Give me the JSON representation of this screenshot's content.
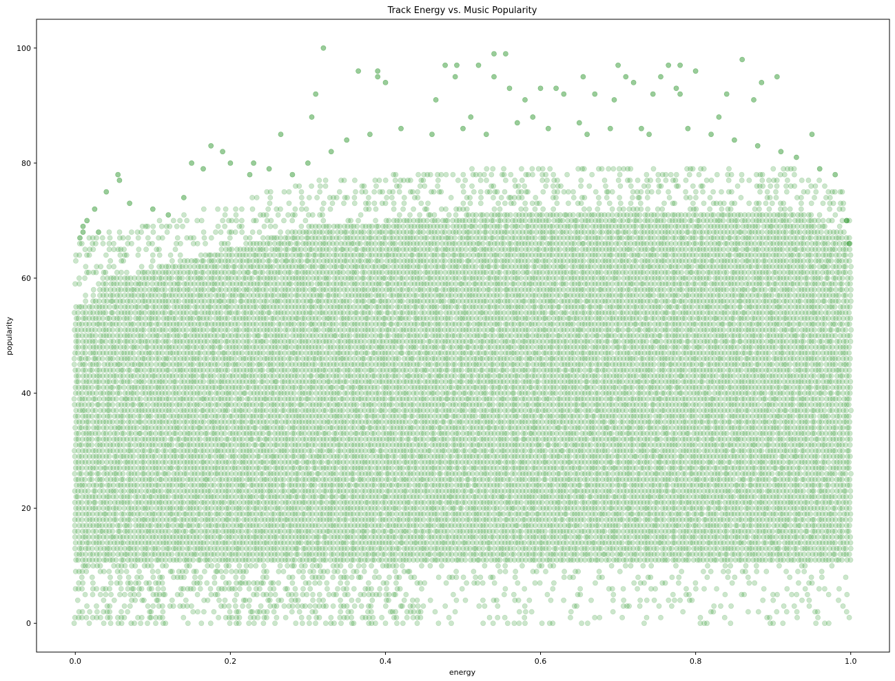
{
  "chart_data": {
    "type": "scatter",
    "title": "Track Energy vs. Music Popularity",
    "xlabel": "energy",
    "ylabel": "popularity",
    "xlim": [
      -0.05,
      1.05
    ],
    "ylim": [
      -5,
      105
    ],
    "xticks": [
      0.0,
      0.2,
      0.4,
      0.6,
      0.8,
      1.0
    ],
    "xtick_labels": [
      "0.0",
      "0.2",
      "0.4",
      "0.6",
      "0.8",
      "1.0"
    ],
    "yticks": [
      0,
      20,
      40,
      60,
      80,
      100
    ],
    "ytick_labels": [
      "0",
      "20",
      "40",
      "60",
      "80",
      "100"
    ],
    "grid": false,
    "legend": "none",
    "marker_color": "#008000",
    "marker_alpha": 0.2,
    "series": [
      {
        "points": [
          [
            0.32,
            100
          ],
          [
            0.54,
            99
          ],
          [
            0.555,
            99
          ],
          [
            0.86,
            98
          ],
          [
            0.477,
            97
          ],
          [
            0.492,
            97
          ],
          [
            0.52,
            97
          ],
          [
            0.7,
            97
          ],
          [
            0.78,
            97
          ],
          [
            0.765,
            97
          ],
          [
            0.8,
            96
          ],
          [
            0.365,
            96
          ],
          [
            0.39,
            96
          ],
          [
            0.655,
            95
          ],
          [
            0.54,
            95
          ],
          [
            0.755,
            95
          ],
          [
            0.905,
            95
          ],
          [
            0.49,
            95
          ],
          [
            0.39,
            95
          ],
          [
            0.71,
            95
          ],
          [
            0.4,
            94
          ],
          [
            0.72,
            94
          ],
          [
            0.885,
            94
          ],
          [
            0.56,
            93
          ],
          [
            0.6,
            93
          ],
          [
            0.62,
            93
          ],
          [
            0.775,
            93
          ],
          [
            0.31,
            92
          ],
          [
            0.63,
            92
          ],
          [
            0.67,
            92
          ],
          [
            0.745,
            92
          ],
          [
            0.78,
            92
          ],
          [
            0.84,
            92
          ],
          [
            0.465,
            91
          ],
          [
            0.58,
            91
          ],
          [
            0.875,
            91
          ],
          [
            0.695,
            91
          ],
          [
            0.305,
            88
          ],
          [
            0.51,
            88
          ],
          [
            0.59,
            88
          ],
          [
            0.65,
            87
          ],
          [
            0.73,
            86
          ],
          [
            0.83,
            88
          ],
          [
            0.95,
            85
          ],
          [
            0.265,
            85
          ],
          [
            0.175,
            83
          ],
          [
            0.19,
            82
          ],
          [
            0.1,
            72
          ],
          [
            0.04,
            75
          ],
          [
            0.055,
            78
          ],
          [
            0.057,
            77
          ],
          [
            0.07,
            73
          ],
          [
            0.025,
            72
          ],
          [
            0.015,
            70
          ],
          [
            0.01,
            69
          ],
          [
            0.01,
            68
          ],
          [
            0.03,
            68
          ],
          [
            0.006,
            67
          ],
          [
            0.12,
            71
          ],
          [
            0.14,
            74
          ],
          [
            0.15,
            80
          ],
          [
            0.165,
            79
          ],
          [
            0.2,
            80
          ],
          [
            0.225,
            78
          ],
          [
            0.23,
            80
          ],
          [
            0.25,
            79
          ],
          [
            0.28,
            78
          ],
          [
            0.3,
            80
          ],
          [
            0.33,
            82
          ],
          [
            0.35,
            84
          ],
          [
            0.38,
            85
          ],
          [
            0.42,
            86
          ],
          [
            0.46,
            85
          ],
          [
            0.5,
            86
          ],
          [
            0.53,
            85
          ],
          [
            0.57,
            87
          ],
          [
            0.61,
            86
          ],
          [
            0.66,
            85
          ],
          [
            0.69,
            86
          ],
          [
            0.74,
            85
          ],
          [
            0.79,
            86
          ],
          [
            0.82,
            85
          ],
          [
            0.85,
            84
          ],
          [
            0.88,
            83
          ],
          [
            0.91,
            82
          ],
          [
            0.93,
            81
          ],
          [
            0.96,
            79
          ],
          [
            0.98,
            78
          ],
          [
            0.995,
            70
          ],
          [
            0.998,
            66
          ]
        ]
      }
    ]
  }
}
